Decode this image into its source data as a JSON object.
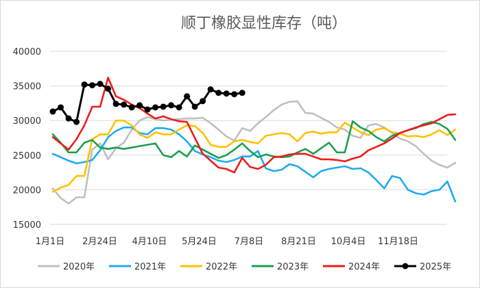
{
  "chart_data": {
    "type": "line",
    "title": "顺丁橡胶显性库存（吨）",
    "xlabel": "",
    "ylabel": "",
    "x_ticks": [
      "1月1日",
      "2月24日",
      "4月10日",
      "5月24日",
      "7月8日",
      "8月21日",
      "10月4日",
      "11月18日"
    ],
    "y_ticks": [
      "15000",
      "20000",
      "25000",
      "30000",
      "35000",
      "40000"
    ],
    "ylim": [
      15000,
      40000
    ],
    "x_unit": "week",
    "xlim": [
      1,
      52
    ],
    "grid": "horizontal",
    "legend_position": "bottom",
    "series": [
      {
        "name": "2020年",
        "color": "#bfbfbf",
        "values": [
          20200,
          18800,
          18000,
          18900,
          18900,
          25800,
          26700,
          24400,
          26000,
          26800,
          28700,
          30000,
          30500,
          30200,
          30000,
          30100,
          30200,
          30300,
          30300,
          30400,
          29600,
          28700,
          27700,
          27100,
          28900,
          28500,
          29600,
          30500,
          31500,
          32300,
          32700,
          32800,
          31100,
          31000,
          30400,
          29800,
          29000,
          28700,
          27800,
          27500,
          29300,
          29500,
          29000,
          28200,
          27400,
          27000,
          26300,
          25200,
          24200,
          23600,
          23200,
          23900
        ]
      },
      {
        "name": "2021年",
        "color": "#1eaaf1",
        "values": [
          25200,
          24700,
          24200,
          23800,
          24000,
          24300,
          25700,
          27600,
          28500,
          29000,
          29000,
          28200,
          28000,
          28900,
          28900,
          28700,
          28000,
          27000,
          25600,
          25100,
          24700,
          24200,
          24000,
          24300,
          24800,
          24800,
          25600,
          23100,
          22700,
          22900,
          23700,
          23400,
          22600,
          21800,
          22700,
          23000,
          23200,
          23400,
          23000,
          23100,
          22500,
          21400,
          20200,
          22000,
          21700,
          20000,
          19500,
          19300,
          19800,
          20000,
          21200,
          18300
        ]
      },
      {
        "name": "2022年",
        "color": "#ffc000",
        "values": [
          19700,
          20300,
          20700,
          22000,
          22000,
          27300,
          28000,
          28000,
          30000,
          30000,
          29300,
          28000,
          27500,
          28300,
          28000,
          28000,
          28700,
          29300,
          29200,
          28200,
          26500,
          26200,
          26200,
          27000,
          27200,
          26900,
          26700,
          27800,
          28000,
          28200,
          28000,
          27000,
          28200,
          28400,
          28100,
          28300,
          28300,
          29700,
          29000,
          28300,
          27900,
          28700,
          28900,
          28300,
          28100,
          27700,
          27800,
          27600,
          28000,
          28600,
          27900,
          28700
        ]
      },
      {
        "name": "2023年",
        "color": "#1aa04b",
        "values": [
          28000,
          26800,
          25400,
          25400,
          26800,
          27200,
          26100,
          25900,
          26100,
          25900,
          26100,
          26300,
          26500,
          26700,
          25000,
          24700,
          25600,
          24800,
          26400,
          25800,
          25200,
          24600,
          25000,
          25800,
          26700,
          25600,
          24700,
          25100,
          24800,
          24700,
          24800,
          25400,
          25900,
          25200,
          26000,
          26800,
          25400,
          25400,
          29900,
          29000,
          28500,
          27600,
          27000,
          27800,
          28200,
          28600,
          28900,
          29500,
          29800,
          29500,
          28800,
          27200
        ]
      },
      {
        "name": "2024年",
        "color": "#ee1b1b",
        "values": [
          27600,
          26700,
          25800,
          27300,
          29300,
          32000,
          32000,
          36200,
          33500,
          33000,
          32300,
          31800,
          31000,
          30300,
          30600,
          30200,
          29900,
          29800,
          27500,
          25200,
          24200,
          23200,
          23000,
          22500,
          24600,
          23300,
          23000,
          23600,
          24700,
          24800,
          25100,
          25200,
          25200,
          24800,
          24400,
          24400,
          24300,
          24100,
          24500,
          24800,
          25700,
          26200,
          26700,
          27400,
          28200,
          28600,
          29000,
          29300,
          29600,
          30200,
          30800,
          30900
        ]
      },
      {
        "name": "2025年",
        "color": "#000000",
        "values": [
          31300,
          31900,
          30300,
          29800,
          35200,
          35100,
          35300,
          34600,
          32400,
          32300,
          31900,
          32200,
          31600,
          31900,
          32000,
          32200,
          31900,
          33500,
          32000,
          32800,
          34500,
          34000,
          33900,
          33800,
          34000,
          null,
          null,
          null,
          null,
          null,
          null,
          null,
          null,
          null,
          null,
          null,
          null,
          null,
          null,
          null,
          null,
          null,
          null,
          null,
          null,
          null,
          null,
          null,
          null,
          null,
          null,
          null
        ]
      }
    ]
  }
}
